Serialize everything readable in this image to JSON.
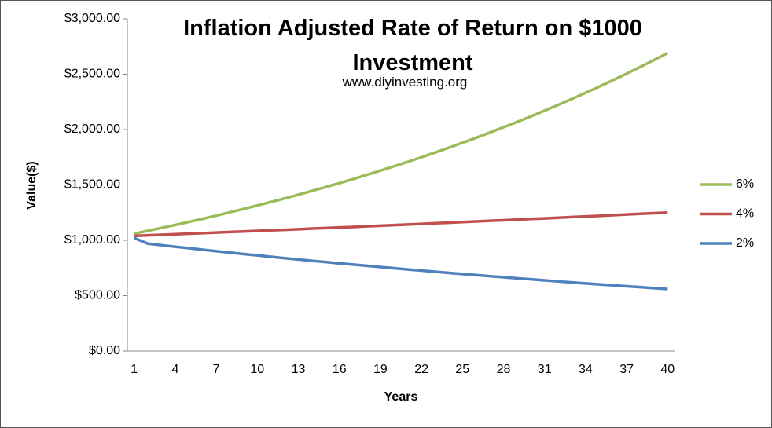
{
  "chart_data": {
    "type": "line",
    "title": "Inflation Adjusted Rate of Return on $1000 Investment",
    "subtitle": "www.diyinvesting.org",
    "x_label": "Years",
    "y_label": "Value($)",
    "categories": [
      1,
      null,
      null,
      4,
      null,
      null,
      7,
      null,
      null,
      10,
      null,
      null,
      13,
      null,
      null,
      16,
      null,
      null,
      19,
      null,
      null,
      22,
      null,
      null,
      25,
      null,
      null,
      28,
      null,
      null,
      31,
      null,
      null,
      34,
      null,
      null,
      37,
      null,
      null,
      40
    ],
    "series": [
      {
        "name": "6%",
        "color": "#9bbb59",
        "values": [
          1060,
          1086,
          1112,
          1139,
          1166,
          1194,
          1223,
          1253,
          1283,
          1314,
          1346,
          1378,
          1412,
          1446,
          1481,
          1516,
          1553,
          1591,
          1629,
          1669,
          1709,
          1750,
          1793,
          1836,
          1881,
          1926,
          1973,
          2021,
          2069,
          2119,
          2171,
          2223,
          2277,
          2332,
          2388,
          2446,
          2505,
          2566,
          2628,
          2691
        ]
      },
      {
        "name": "4%",
        "color": "#c0504d",
        "values": [
          1040,
          1045,
          1050,
          1055,
          1060,
          1065,
          1070,
          1075,
          1080,
          1085,
          1090,
          1095,
          1100,
          1106,
          1111,
          1116,
          1121,
          1127,
          1132,
          1137,
          1143,
          1148,
          1154,
          1159,
          1165,
          1170,
          1176,
          1181,
          1187,
          1193,
          1198,
          1204,
          1210,
          1215,
          1221,
          1227,
          1233,
          1239,
          1245,
          1250
        ]
      },
      {
        "name": "2%",
        "color": "#4f81bd",
        "values": [
          1020,
          970,
          956,
          942,
          929,
          915,
          902,
          889,
          876,
          864,
          851,
          839,
          827,
          815,
          804,
          792,
          781,
          770,
          759,
          748,
          737,
          727,
          716,
          706,
          696,
          686,
          676,
          667,
          657,
          648,
          638,
          629,
          620,
          611,
          602,
          594,
          585,
          577,
          568,
          560
        ]
      }
    ],
    "ylim": [
      0,
      3000
    ],
    "yticks": [
      {
        "value": 0,
        "label": "$0.00"
      },
      {
        "value": 500,
        "label": "$500.00"
      },
      {
        "value": 1000,
        "label": "$1,000.00"
      },
      {
        "value": 1500,
        "label": "$1,500.00"
      },
      {
        "value": 2000,
        "label": "$2,000.00"
      },
      {
        "value": 2500,
        "label": "$2,500.00"
      },
      {
        "value": 3000,
        "label": "$3,000.00"
      }
    ],
    "legend": "right",
    "grid": false
  }
}
